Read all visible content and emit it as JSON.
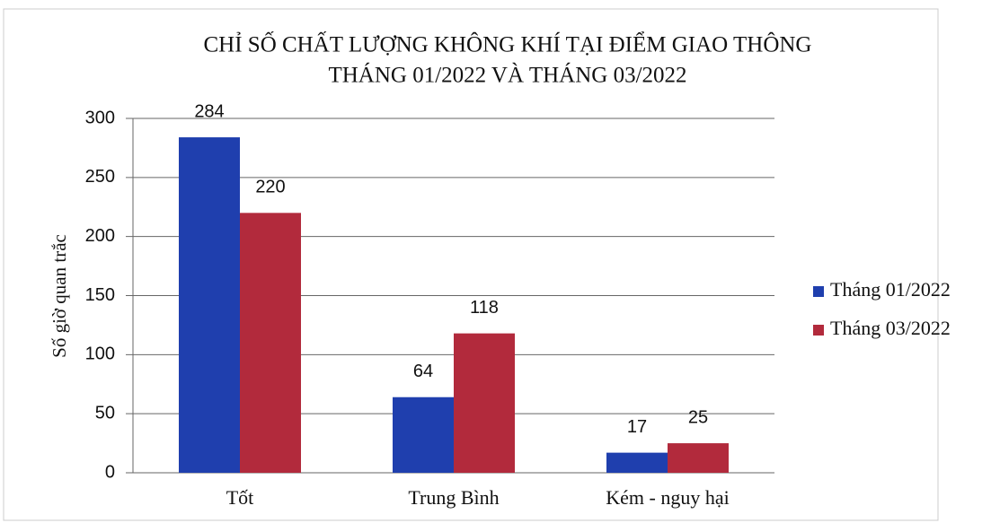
{
  "chart_data": {
    "type": "bar",
    "title": [
      "CHỈ SỐ CHẤT LƯỢNG KHÔNG KHÍ TẠI ĐIỂM GIAO THÔNG",
      "THÁNG 01/2022 VÀ THÁNG 03/2022"
    ],
    "y_label": "Số giờ quan trắc",
    "categories": [
      "Tốt",
      "Trung Bình",
      "Kém - nguy hại"
    ],
    "series": [
      {
        "name": "Tháng 01/2022",
        "color": "#1f3fae",
        "values": [
          284,
          64,
          17
        ]
      },
      {
        "name": "Tháng 03/2022",
        "color": "#b22a3c",
        "values": [
          220,
          118,
          25
        ]
      }
    ],
    "ylim": [
      0,
      300
    ],
    "yticks": [
      0,
      50,
      100,
      150,
      200,
      250,
      300
    ],
    "grid": true,
    "legend": "right"
  }
}
